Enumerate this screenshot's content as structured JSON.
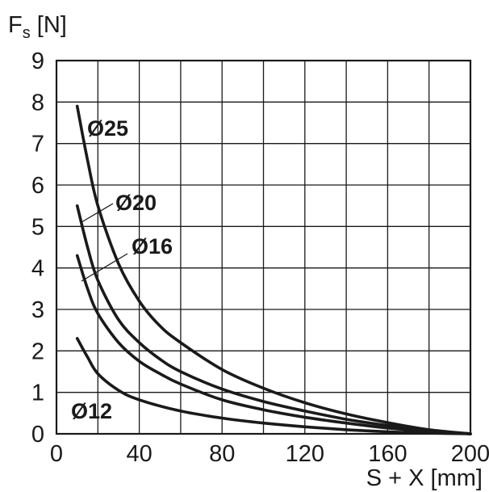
{
  "chart_data": {
    "type": "line",
    "ylabel_main": "F",
    "ylabel_sub": "s",
    "ylabel_unit": " [N]",
    "xlabel": "S + X [mm]",
    "xlim": [
      0,
      200
    ],
    "ylim": [
      0,
      9
    ],
    "x_ticks": [
      "0",
      "40",
      "80",
      "120",
      "160",
      "200"
    ],
    "y_ticks": [
      "0",
      "1",
      "2",
      "3",
      "4",
      "5",
      "6",
      "7",
      "8",
      "9"
    ],
    "grid": true,
    "line_color": "#1a1a1a",
    "series": [
      {
        "name": "Ø25",
        "points": [
          [
            10,
            7.9
          ],
          [
            15,
            6.6
          ],
          [
            20,
            5.5
          ],
          [
            30,
            4.1
          ],
          [
            40,
            3.2
          ],
          [
            50,
            2.6
          ],
          [
            60,
            2.2
          ],
          [
            80,
            1.55
          ],
          [
            100,
            1.1
          ],
          [
            120,
            0.75
          ],
          [
            140,
            0.48
          ],
          [
            160,
            0.27
          ],
          [
            180,
            0.1
          ],
          [
            200,
            0.0
          ]
        ]
      },
      {
        "name": "Ø20",
        "points": [
          [
            10,
            5.5
          ],
          [
            15,
            4.5
          ],
          [
            20,
            3.7
          ],
          [
            30,
            2.75
          ],
          [
            40,
            2.2
          ],
          [
            50,
            1.8
          ],
          [
            60,
            1.5
          ],
          [
            80,
            1.08
          ],
          [
            100,
            0.78
          ],
          [
            120,
            0.55
          ],
          [
            140,
            0.35
          ],
          [
            160,
            0.2
          ],
          [
            180,
            0.08
          ],
          [
            200,
            0.0
          ]
        ]
      },
      {
        "name": "Ø16",
        "points": [
          [
            10,
            4.3
          ],
          [
            15,
            3.5
          ],
          [
            20,
            2.9
          ],
          [
            30,
            2.2
          ],
          [
            40,
            1.75
          ],
          [
            50,
            1.45
          ],
          [
            60,
            1.2
          ],
          [
            80,
            0.82
          ],
          [
            100,
            0.58
          ],
          [
            120,
            0.4
          ],
          [
            140,
            0.26
          ],
          [
            160,
            0.14
          ],
          [
            180,
            0.06
          ],
          [
            200,
            0.0
          ]
        ]
      },
      {
        "name": "Ø12",
        "points": [
          [
            10,
            2.3
          ],
          [
            15,
            1.85
          ],
          [
            20,
            1.45
          ],
          [
            30,
            1.05
          ],
          [
            40,
            0.82
          ],
          [
            60,
            0.55
          ],
          [
            80,
            0.38
          ],
          [
            100,
            0.26
          ],
          [
            120,
            0.17
          ],
          [
            140,
            0.1
          ],
          [
            160,
            0.05
          ],
          [
            180,
            0.02
          ],
          [
            200,
            0.0
          ]
        ]
      }
    ]
  }
}
